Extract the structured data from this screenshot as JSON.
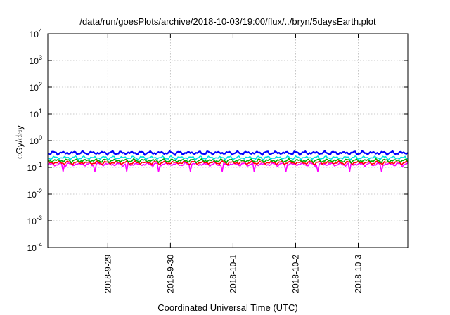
{
  "chart_data": {
    "type": "line",
    "title": "/data/run/goesPlots/archive/2018-10-03/19:00/flux/../bryn/5daysEarth.plot",
    "xlabel": "Coordinated Universal Time (UTC)",
    "ylabel": "cGy/day",
    "yscale": "log",
    "ylim": [
      0.0001,
      10000
    ],
    "y_ticks": [
      {
        "base": "10",
        "exp": "-4",
        "value": 0.0001
      },
      {
        "base": "10",
        "exp": "-3",
        "value": 0.001
      },
      {
        "base": "10",
        "exp": "-2",
        "value": 0.01
      },
      {
        "base": "10",
        "exp": "-1",
        "value": 0.1
      },
      {
        "base": "10",
        "exp": "0",
        "value": 1
      },
      {
        "base": "10",
        "exp": "1",
        "value": 10
      },
      {
        "base": "10",
        "exp": "2",
        "value": 100
      },
      {
        "base": "10",
        "exp": "3",
        "value": 1000
      },
      {
        "base": "10",
        "exp": "4",
        "value": 10000
      }
    ],
    "xlim": [
      "2018-09-28T01:00",
      "2018-10-03T19:00"
    ],
    "x_ticks": [
      "2018-9-29",
      "2018-9-30",
      "2018-10-1",
      "2018-10-2",
      "2018-10-3"
    ],
    "grid": true,
    "series": [
      {
        "color": "#ff00ff",
        "dip_min": 0.07,
        "values": [
          0.13,
          0.13,
          0.13,
          0.13,
          0.13,
          0.13
        ]
      },
      {
        "color": "#ff0000",
        "values": [
          0.15,
          0.15,
          0.15,
          0.15,
          0.15,
          0.15
        ]
      },
      {
        "color": "#00aa00",
        "values": [
          0.18,
          0.18,
          0.18,
          0.18,
          0.18,
          0.18
        ]
      },
      {
        "color": "#00e0e0",
        "values": [
          0.23,
          0.23,
          0.23,
          0.23,
          0.23,
          0.23
        ]
      },
      {
        "color": "#0000ff",
        "values": [
          0.35,
          0.35,
          0.35,
          0.35,
          0.35,
          0.35
        ]
      }
    ],
    "series_x": [
      "2018-09-28T01:00",
      "2018-09-29T00:00",
      "2018-09-30T00:00",
      "2018-10-01T00:00",
      "2018-10-02T00:00",
      "2018-10-03T19:00"
    ]
  }
}
